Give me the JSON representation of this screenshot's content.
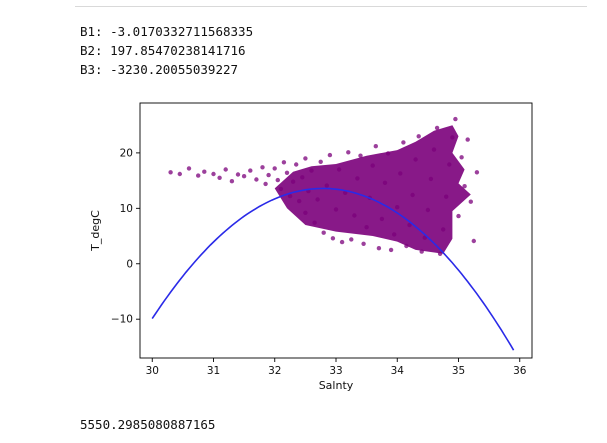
{
  "output": {
    "b1": "B1: -3.0170332711568335",
    "b2": "B2: 197.85470238141716",
    "b3": "B3: -3230.20055039227",
    "result": "5550.2985080887165"
  },
  "colors": {
    "scatter": "#7b007b",
    "curve": "#2a2ae8"
  },
  "chart_data": {
    "type": "scatter",
    "xlabel": "Salnty",
    "ylabel": "T_degC",
    "xlim": [
      29.8,
      36.2
    ],
    "ylim": [
      -17,
      29
    ],
    "xticks": [
      30,
      31,
      32,
      33,
      34,
      35,
      36
    ],
    "yticks": [
      -10,
      0,
      10,
      20
    ],
    "grid": false,
    "curve": {
      "type": "line",
      "coefficients": {
        "b1": -3.0170332711568335,
        "b2": 197.85470238141716,
        "b3": -3230.20055039227
      },
      "x": [
        30.0,
        30.5,
        31.0,
        31.5,
        32.0,
        32.5,
        33.0,
        33.5,
        34.0,
        34.5,
        35.0,
        35.5,
        35.9
      ],
      "y": [
        -9.8,
        -2.2,
        4.0,
        8.6,
        11.9,
        13.4,
        13.5,
        12.3,
        9.5,
        5.3,
        -0.3,
        -7.5,
        -15.4
      ]
    },
    "scatter_points": [
      [
        30.3,
        16.5
      ],
      [
        30.45,
        16.2
      ],
      [
        30.6,
        17.2
      ],
      [
        30.75,
        15.9
      ],
      [
        30.85,
        16.6
      ],
      [
        31.0,
        16.2
      ],
      [
        31.1,
        15.5
      ],
      [
        31.2,
        17.0
      ],
      [
        31.3,
        14.9
      ],
      [
        31.4,
        16.1
      ],
      [
        31.5,
        15.8
      ],
      [
        31.6,
        16.8
      ],
      [
        31.7,
        15.2
      ],
      [
        31.8,
        17.4
      ],
      [
        31.85,
        14.4
      ],
      [
        31.9,
        16.0
      ],
      [
        32.0,
        17.2
      ],
      [
        32.05,
        15.1
      ],
      [
        32.1,
        13.5
      ],
      [
        32.15,
        18.3
      ],
      [
        32.2,
        16.4
      ],
      [
        32.25,
        12.2
      ],
      [
        32.3,
        14.8
      ],
      [
        32.35,
        17.9
      ],
      [
        32.4,
        11.3
      ],
      [
        32.45,
        15.6
      ],
      [
        32.5,
        19.0
      ],
      [
        32.5,
        9.2
      ],
      [
        32.55,
        13.1
      ],
      [
        32.6,
        16.8
      ],
      [
        32.65,
        7.4
      ],
      [
        32.7,
        11.6
      ],
      [
        32.75,
        18.4
      ],
      [
        32.8,
        5.6
      ],
      [
        32.85,
        14.1
      ],
      [
        32.9,
        19.6
      ],
      [
        32.95,
        4.6
      ],
      [
        33.0,
        9.8
      ],
      [
        33.05,
        17.0
      ],
      [
        33.1,
        3.9
      ],
      [
        33.15,
        12.8
      ],
      [
        33.2,
        20.1
      ],
      [
        33.25,
        4.4
      ],
      [
        33.3,
        8.7
      ],
      [
        33.35,
        15.4
      ],
      [
        33.4,
        19.5
      ],
      [
        33.45,
        3.6
      ],
      [
        33.5,
        6.6
      ],
      [
        33.55,
        11.9
      ],
      [
        33.6,
        17.7
      ],
      [
        33.65,
        21.2
      ],
      [
        33.7,
        2.8
      ],
      [
        33.75,
        8.1
      ],
      [
        33.8,
        14.6
      ],
      [
        33.85,
        19.9
      ],
      [
        33.9,
        2.5
      ],
      [
        33.95,
        5.3
      ],
      [
        34.0,
        10.2
      ],
      [
        34.05,
        16.3
      ],
      [
        34.1,
        21.9
      ],
      [
        34.15,
        3.2
      ],
      [
        34.2,
        7.0
      ],
      [
        34.25,
        12.4
      ],
      [
        34.3,
        18.8
      ],
      [
        34.35,
        23.0
      ],
      [
        34.4,
        2.2
      ],
      [
        34.45,
        4.7
      ],
      [
        34.5,
        9.7
      ],
      [
        34.55,
        15.3
      ],
      [
        34.6,
        20.6
      ],
      [
        34.65,
        24.5
      ],
      [
        34.7,
        1.8
      ],
      [
        34.75,
        6.2
      ],
      [
        34.8,
        12.1
      ],
      [
        34.85,
        17.9
      ],
      [
        34.9,
        22.8
      ],
      [
        34.95,
        26.1
      ],
      [
        35.0,
        8.6
      ],
      [
        35.05,
        19.2
      ],
      [
        35.1,
        14.0
      ],
      [
        35.15,
        22.4
      ],
      [
        35.2,
        11.2
      ],
      [
        35.25,
        4.1
      ],
      [
        35.3,
        16.5
      ]
    ]
  }
}
